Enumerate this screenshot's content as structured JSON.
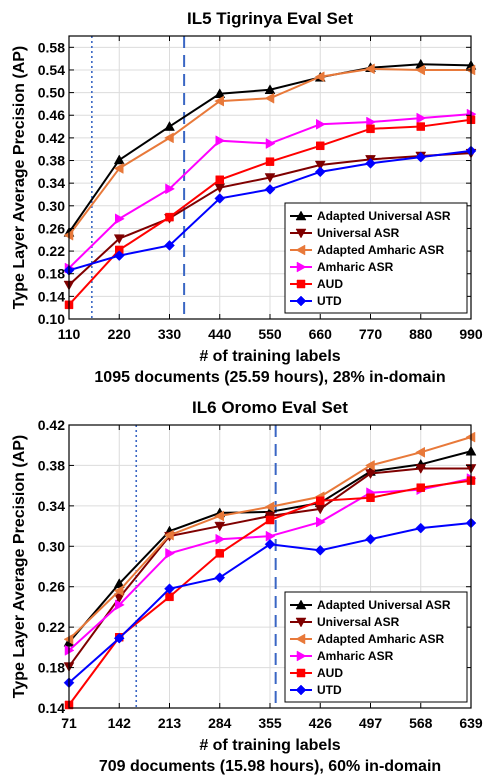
{
  "chart_data": [
    {
      "type": "line",
      "title": "IL5 Tigrinya Eval Set",
      "xlabel": "# of training labels",
      "ylabel": "Type Layer Average Precision (AP)",
      "caption": "1095 documents (25.59 hours), 28% in-domain",
      "x": [
        110,
        220,
        330,
        440,
        550,
        660,
        770,
        880,
        990
      ],
      "xlim": [
        110,
        990
      ],
      "ylim": [
        0.1,
        0.6
      ],
      "yticks": [
        0.1,
        0.14,
        0.18,
        0.22,
        0.26,
        0.3,
        0.34,
        0.38,
        0.42,
        0.46,
        0.5,
        0.54,
        0.58
      ],
      "ytick_labels": [
        "0.10",
        "0.14",
        "0.18",
        "0.22",
        "0.26",
        "0.30",
        "0.34",
        "0.38",
        "0.42",
        "0.46",
        "0.50",
        "0.54",
        "0.58"
      ],
      "xtick_labels": [
        "110",
        "220",
        "330",
        "440",
        "550",
        "660",
        "770",
        "880",
        "990"
      ],
      "vlines": [
        {
          "x": 160,
          "style": "dotted"
        },
        {
          "x": 362,
          "style": "dashed"
        }
      ],
      "grid": true,
      "legend_position": "bottom-right",
      "series": [
        {
          "name": "Adapted Universal ASR",
          "color": "#000000",
          "marker": "triangle-up",
          "values": [
            0.253,
            0.381,
            0.44,
            0.498,
            0.505,
            0.527,
            0.544,
            0.55,
            0.548
          ]
        },
        {
          "name": "Universal ASR",
          "color": "#7f0000",
          "marker": "triangle-down",
          "values": [
            0.16,
            0.242,
            0.278,
            0.332,
            0.35,
            0.372,
            0.382,
            0.388,
            0.393
          ]
        },
        {
          "name": "Adapted Amharic ASR",
          "color": "#e8793a",
          "marker": "triangle-left",
          "values": [
            0.248,
            0.366,
            0.42,
            0.485,
            0.49,
            0.528,
            0.542,
            0.54,
            0.54
          ]
        },
        {
          "name": "Amharic ASR",
          "color": "#ff00ff",
          "marker": "triangle-right",
          "values": [
            0.19,
            0.277,
            0.33,
            0.415,
            0.41,
            0.444,
            0.448,
            0.455,
            0.462
          ]
        },
        {
          "name": "AUD",
          "color": "#ff0000",
          "marker": "square",
          "values": [
            0.125,
            0.222,
            0.28,
            0.346,
            0.378,
            0.406,
            0.436,
            0.44,
            0.452
          ]
        },
        {
          "name": "UTD",
          "color": "#0000ff",
          "marker": "diamond",
          "values": [
            0.186,
            0.212,
            0.23,
            0.313,
            0.329,
            0.36,
            0.375,
            0.386,
            0.397
          ]
        }
      ]
    },
    {
      "type": "line",
      "title": "IL6 Oromo Eval Set",
      "xlabel": "# of training labels",
      "ylabel": "Type Layer Average Precision (AP)",
      "caption": "709 documents (15.98 hours), 60% in-domain",
      "x": [
        71,
        142,
        213,
        284,
        355,
        426,
        497,
        568,
        639
      ],
      "xlim": [
        71,
        639
      ],
      "ylim": [
        0.14,
        0.42
      ],
      "yticks": [
        0.14,
        0.18,
        0.22,
        0.26,
        0.3,
        0.34,
        0.38,
        0.42
      ],
      "ytick_labels": [
        "0.14",
        "0.18",
        "0.22",
        "0.26",
        "0.30",
        "0.34",
        "0.38",
        "0.42"
      ],
      "xtick_labels": [
        "71",
        "142",
        "213",
        "284",
        "355",
        "426",
        "497",
        "568",
        "639"
      ],
      "vlines": [
        {
          "x": 166,
          "style": "dotted"
        },
        {
          "x": 363,
          "style": "dashed"
        }
      ],
      "grid": true,
      "legend_position": "bottom-right",
      "series": [
        {
          "name": "Adapted Universal ASR",
          "color": "#000000",
          "marker": "triangle-up",
          "values": [
            0.205,
            0.263,
            0.315,
            0.333,
            0.334,
            0.343,
            0.374,
            0.381,
            0.394
          ]
        },
        {
          "name": "Universal ASR",
          "color": "#7f0000",
          "marker": "triangle-down",
          "values": [
            0.181,
            0.249,
            0.31,
            0.32,
            0.33,
            0.337,
            0.372,
            0.377,
            0.377
          ]
        },
        {
          "name": "Adapted Amharic ASR",
          "color": "#e8793a",
          "marker": "triangle-left",
          "values": [
            0.208,
            0.256,
            0.311,
            0.33,
            0.339,
            0.349,
            0.38,
            0.393,
            0.408
          ]
        },
        {
          "name": "Amharic ASR",
          "color": "#ff00ff",
          "marker": "triangle-right",
          "values": [
            0.197,
            0.242,
            0.293,
            0.307,
            0.31,
            0.324,
            0.353,
            0.356,
            0.367
          ]
        },
        {
          "name": "AUD",
          "color": "#ff0000",
          "marker": "square",
          "values": [
            0.143,
            0.21,
            0.25,
            0.293,
            0.326,
            0.345,
            0.348,
            0.358,
            0.365
          ]
        },
        {
          "name": "UTD",
          "color": "#0000ff",
          "marker": "diamond",
          "values": [
            0.165,
            0.209,
            0.258,
            0.269,
            0.302,
            0.296,
            0.307,
            0.318,
            0.323
          ]
        }
      ]
    }
  ]
}
